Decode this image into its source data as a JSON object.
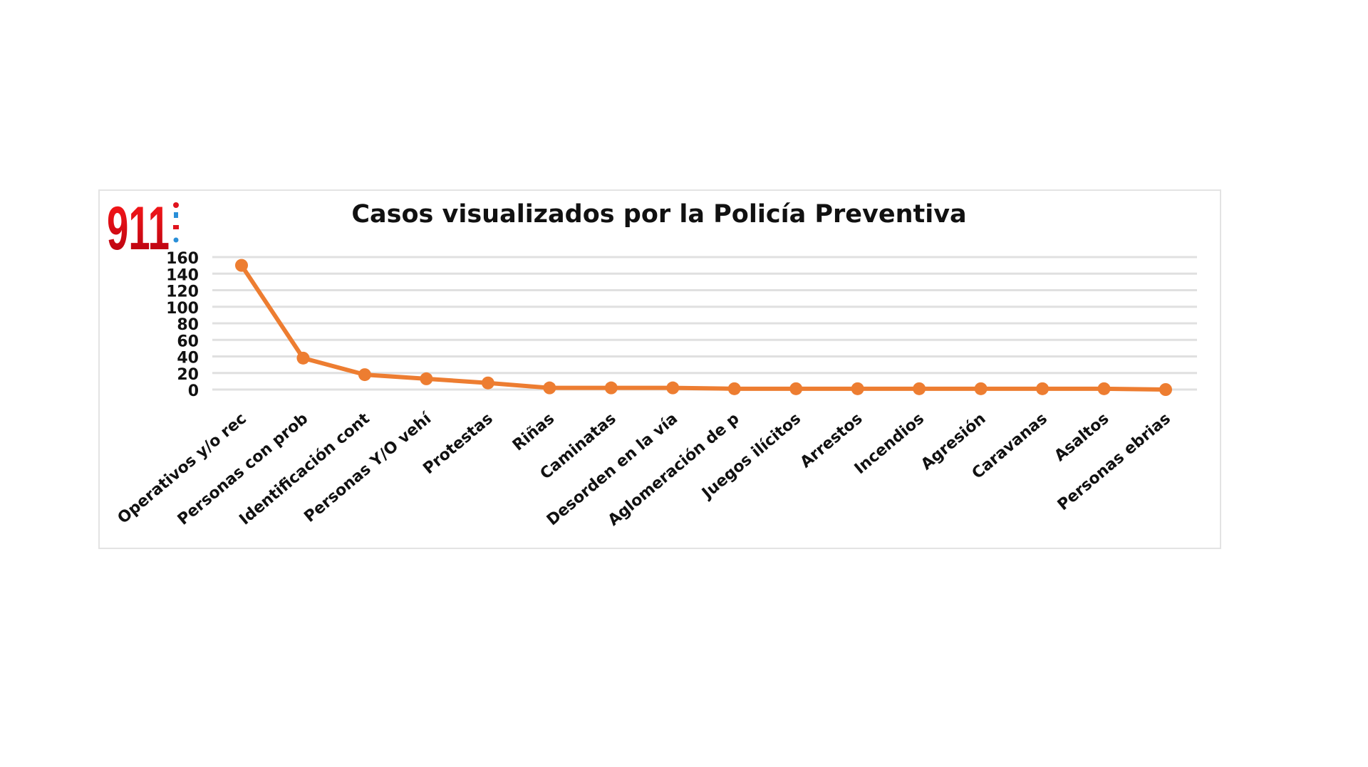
{
  "logo_text": "911",
  "chart_data": {
    "type": "line",
    "title": "Casos visualizados por la Policía Preventiva",
    "categories": [
      "Operativos y/o rec",
      "Personas con prob",
      "Identificación cont",
      "Personas Y/O vehí",
      "Protestas",
      "Riñas",
      "Caminatas",
      "Desorden en la vía",
      "Aglomeración de p",
      "Juegos ilícitos",
      "Arrestos",
      "Incendios",
      "Agresión",
      "Caravanas",
      "Asaltos",
      "Personas ebrias"
    ],
    "values": [
      150,
      38,
      18,
      13,
      8,
      2,
      2,
      2,
      1,
      1,
      1,
      1,
      1,
      1,
      1,
      0
    ],
    "ylim": [
      0,
      160
    ],
    "yticks": [
      0,
      20,
      40,
      60,
      80,
      100,
      120,
      140,
      160
    ],
    "grid": true,
    "legend": "none",
    "xlabel": "",
    "ylabel": "",
    "colors": {
      "line": "#ED7D31",
      "grid": "#e0e0e0",
      "logo": "#e0141e"
    }
  }
}
